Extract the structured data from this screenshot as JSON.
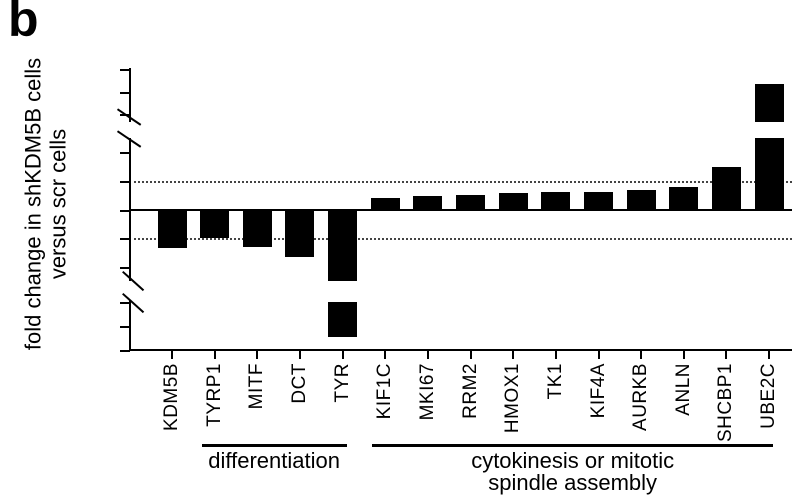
{
  "panel_label": "b",
  "chart_data": {
    "type": "bar",
    "title": "",
    "ylabel_line1": "fold change in shKDM5B cells",
    "ylabel_line2": "versus scr cells",
    "bar_color": "#000000",
    "background_color": "#ffffff",
    "grid": "off",
    "legend": "none",
    "y_axis_broken": true,
    "y_axis_segments": [
      {
        "ticks": [
          120,
          110,
          100
        ],
        "range": [
          97,
          123
        ]
      },
      {
        "ticks": [
          4,
          2,
          0,
          -2,
          -4
        ],
        "range": [
          -5,
          5
        ]
      },
      {
        "ticks": [
          -140,
          -150,
          -160
        ],
        "range": [
          -160,
          -138
        ]
      }
    ],
    "guide_lines": [
      2,
      -2
    ],
    "categories": [
      "KDM5B",
      "TYRP1",
      "MITF",
      "DCT",
      "TYR",
      "KIF1C",
      "MKI67",
      "RRM2",
      "HMOX1",
      "TK1",
      "KIF4A",
      "AURKB",
      "ANLN",
      "SHCBP1",
      "UBE2C"
    ],
    "values": [
      -2.6,
      -1.9,
      -2.5,
      -3.2,
      -154,
      0.9,
      1.0,
      1.1,
      1.2,
      1.3,
      1.3,
      1.4,
      1.6,
      3.0,
      114
    ],
    "groups": [
      {
        "lines": [
          "differentiation"
        ],
        "from": 1,
        "to": 4
      },
      {
        "lines": [
          "cytokinesis or mitotic",
          "spindle assembly"
        ],
        "from": 5,
        "to": 14
      }
    ]
  }
}
